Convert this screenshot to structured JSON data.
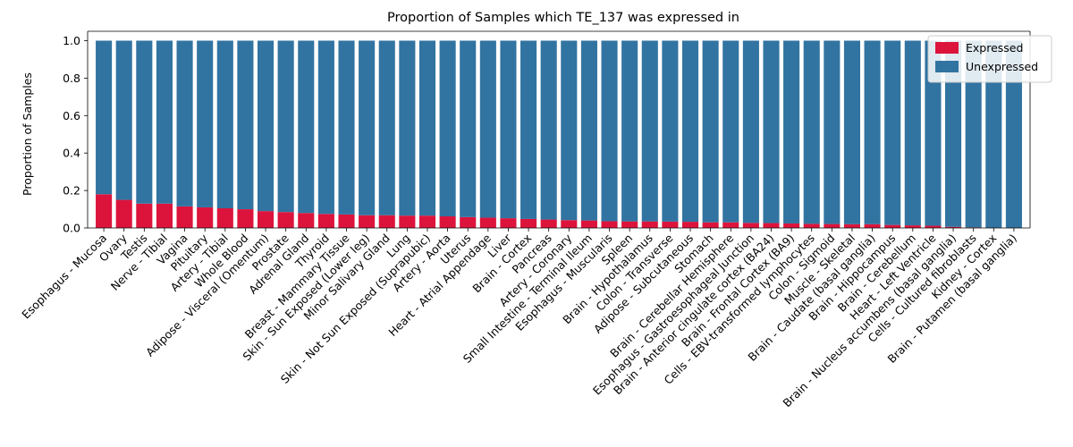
{
  "chart_data": {
    "type": "bar",
    "stacked": true,
    "title": "Proportion of Samples which TE_137 was expressed in",
    "xlabel": "",
    "ylabel": "Proportion of Samples",
    "ylim": [
      0.0,
      1.05
    ],
    "yticks": [
      "0.0",
      "0.2",
      "0.4",
      "0.6",
      "0.8",
      "1.0"
    ],
    "grid": false,
    "legend_position": "top-right",
    "categories": [
      "Esophagus - Mucosa",
      "Ovary",
      "Testis",
      "Nerve - Tibial",
      "Vagina",
      "Pituitary",
      "Artery - Tibial",
      "Whole Blood",
      "Adipose - Visceral (Omentum)",
      "Prostate",
      "Adrenal Gland",
      "Thyroid",
      "Breast - Mammary Tissue",
      "Skin - Sun Exposed (Lower leg)",
      "Minor Salivary Gland",
      "Lung",
      "Skin - Not Sun Exposed (Suprapubic)",
      "Artery - Aorta",
      "Uterus",
      "Heart - Atrial Appendage",
      "Liver",
      "Brain - Cortex",
      "Pancreas",
      "Artery - Coronary",
      "Small Intestine - Terminal Ileum",
      "Esophagus - Muscularis",
      "Spleen",
      "Brain - Hypothalamus",
      "Colon - Transverse",
      "Adipose - Subcutaneous",
      "Stomach",
      "Brain - Cerebellar Hemisphere",
      "Esophagus - Gastroesophageal Junction",
      "Brain - Anterior cingulate cortex (BA24)",
      "Brain - Frontal Cortex (BA9)",
      "Cells - EBV-transformed lymphocytes",
      "Colon - Sigmoid",
      "Muscle - Skeletal",
      "Brain - Caudate (basal ganglia)",
      "Brain - Hippocampus",
      "Brain - Cerebellum",
      "Heart - Left Ventricle",
      "Brain - Nucleus accumbens (basal ganglia)",
      "Cells - Cultured fibroblasts",
      "Kidney - Cortex",
      "Brain - Putamen (basal ganglia)"
    ],
    "series": [
      {
        "name": "Expressed",
        "color": "#dc143c",
        "values": [
          0.18,
          0.15,
          0.13,
          0.13,
          0.115,
          0.11,
          0.105,
          0.1,
          0.09,
          0.085,
          0.08,
          0.075,
          0.072,
          0.068,
          0.068,
          0.066,
          0.066,
          0.062,
          0.058,
          0.055,
          0.052,
          0.048,
          0.045,
          0.042,
          0.04,
          0.036,
          0.035,
          0.035,
          0.034,
          0.033,
          0.03,
          0.03,
          0.027,
          0.026,
          0.024,
          0.022,
          0.021,
          0.02,
          0.02,
          0.016,
          0.014,
          0.012,
          0.006,
          0.003,
          0.0,
          0.0
        ]
      },
      {
        "name": "Unexpressed",
        "color": "#3274a1",
        "values": [
          0.82,
          0.85,
          0.87,
          0.87,
          0.885,
          0.89,
          0.895,
          0.9,
          0.91,
          0.915,
          0.92,
          0.925,
          0.928,
          0.932,
          0.932,
          0.934,
          0.934,
          0.938,
          0.942,
          0.945,
          0.948,
          0.952,
          0.955,
          0.958,
          0.96,
          0.964,
          0.965,
          0.965,
          0.966,
          0.967,
          0.97,
          0.97,
          0.973,
          0.974,
          0.976,
          0.978,
          0.979,
          0.98,
          0.98,
          0.984,
          0.986,
          0.988,
          0.994,
          0.997,
          1.0,
          1.0
        ]
      }
    ]
  }
}
